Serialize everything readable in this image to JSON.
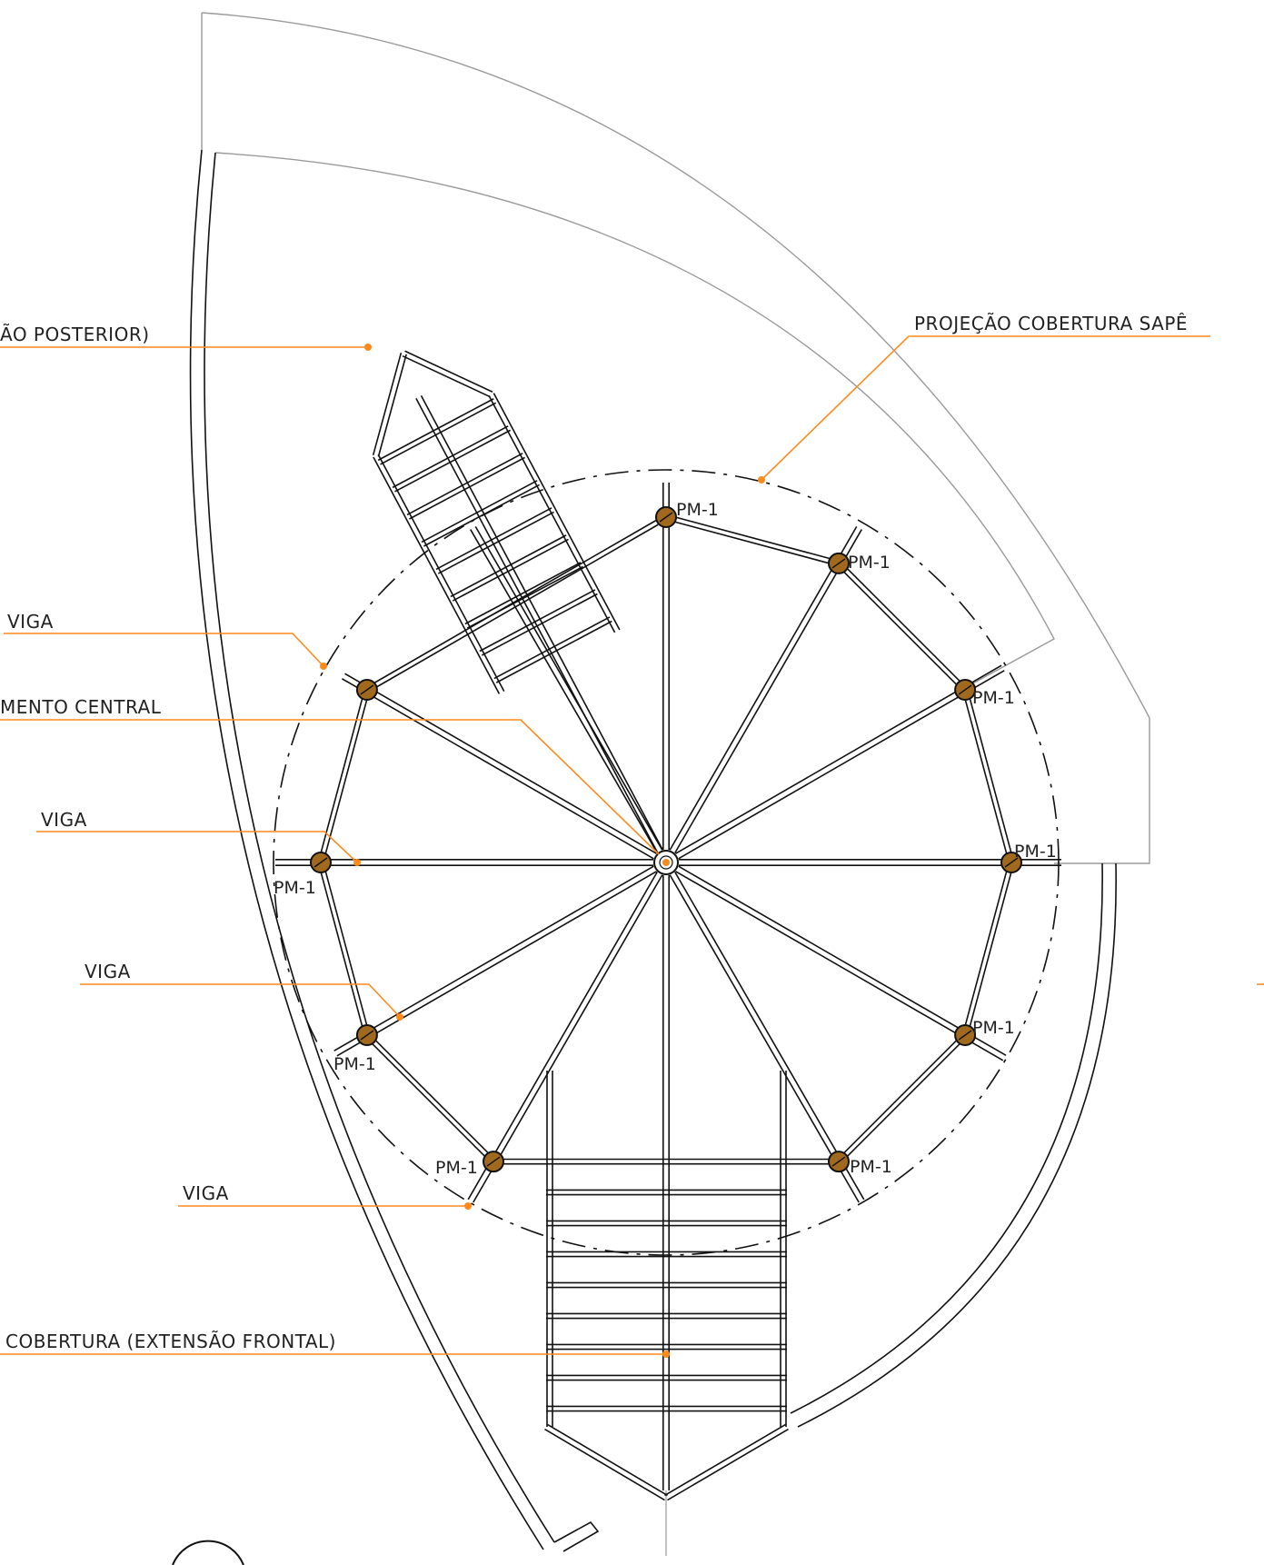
{
  "labels": {
    "posterior": "ÃO POSTERIOR)",
    "projecao": "PROJEÇÃO COBERTURA SAPÊ",
    "viga1": "VIGA",
    "central": "MENTO CENTRAL",
    "viga2": "VIGA",
    "viga3": "VIGA",
    "viga4": "VIGA",
    "frontal": "COBERTURA (EXTENSÃO FRONTAL)"
  },
  "pillar_label": "PM-1",
  "colors": {
    "leader": "#ff8a1c",
    "pillar": "#a0691e",
    "line": "#111111",
    "projection": "#9a9a9a"
  }
}
